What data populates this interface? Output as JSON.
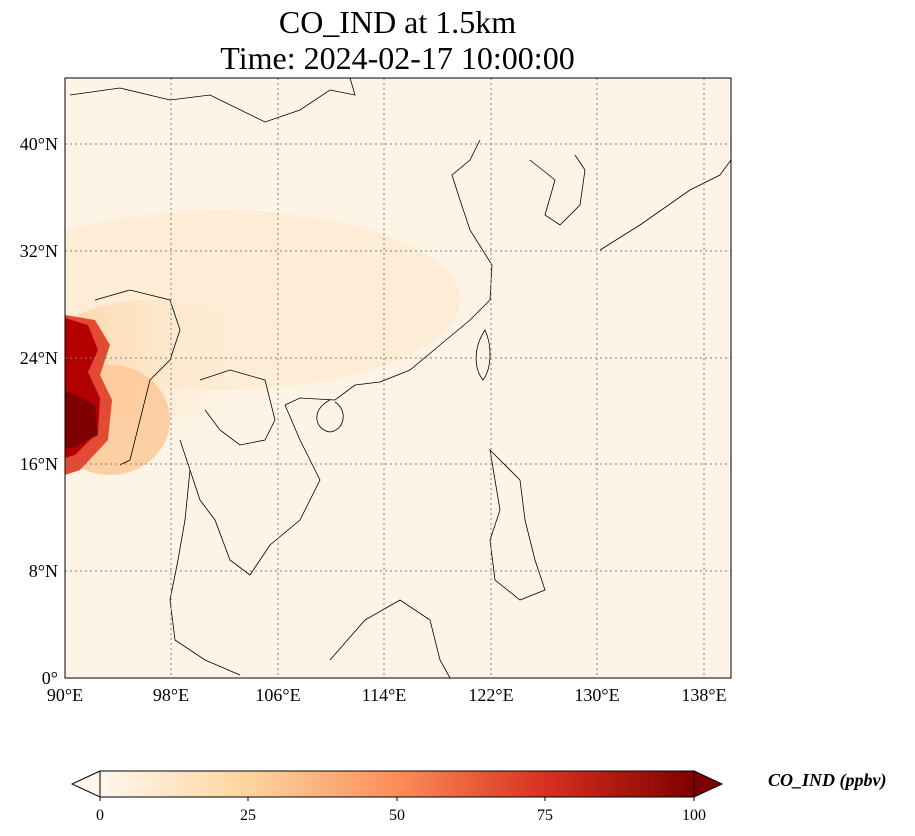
{
  "title": {
    "line1": "CO_IND at 1.5km",
    "line2": "Time: 2024-02-17 10:00:00"
  },
  "map": {
    "lon_range": [
      90,
      140
    ],
    "lat_range": [
      0,
      45
    ],
    "x_ticks": [
      "90°E",
      "98°E",
      "106°E",
      "114°E",
      "122°E",
      "130°E",
      "138°E"
    ],
    "y_ticks": [
      "0°",
      "8°N",
      "16°N",
      "24°N",
      "32°N",
      "40°N"
    ],
    "gridlines": "dotted",
    "colormap": "OrRd",
    "colors": {
      "low": "#fff7ec",
      "mid": "#fc8d59",
      "high": "#7f0000",
      "coastline": "#000000",
      "grid": "#7f7f7f"
    }
  },
  "colorbar": {
    "label": "CO_IND (ppbv)",
    "ticks": [
      "0",
      "25",
      "50",
      "75",
      "100"
    ],
    "range": [
      0,
      100
    ],
    "extend": "both"
  }
}
